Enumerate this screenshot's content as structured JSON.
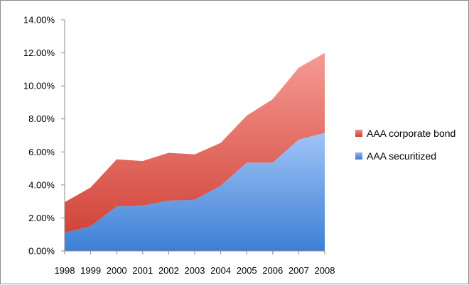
{
  "chart_data": {
    "type": "area",
    "stacked": true,
    "title": "",
    "xlabel": "",
    "ylabel": "",
    "categories": [
      "1998",
      "1999",
      "2000",
      "2001",
      "2002",
      "2003",
      "2004",
      "2005",
      "2006",
      "2007",
      "2008"
    ],
    "ylim": [
      0,
      0.14
    ],
    "ytick_values": [
      0,
      0.02,
      0.04,
      0.06,
      0.08,
      0.1,
      0.12,
      0.14
    ],
    "ytick_labels": [
      "0.00%",
      "2.00%",
      "4.00%",
      "6.00%",
      "8.00%",
      "10.00%",
      "12.00%",
      "14.00%"
    ],
    "series": [
      {
        "name": "AAA securitized",
        "color": "#4a86d8",
        "values": [
          0.011,
          0.015,
          0.027,
          0.0275,
          0.0305,
          0.031,
          0.0395,
          0.0535,
          0.0535,
          0.0675,
          0.0715
        ]
      },
      {
        "name": "AAA corporate bond",
        "color": "#d9504a",
        "values": [
          0.0185,
          0.0235,
          0.0285,
          0.027,
          0.029,
          0.0275,
          0.026,
          0.0285,
          0.0385,
          0.0435,
          0.0485
        ]
      }
    ],
    "legend_order": [
      "AAA corporate bond",
      "AAA securitized"
    ],
    "legend_position": "right",
    "grid": false
  }
}
